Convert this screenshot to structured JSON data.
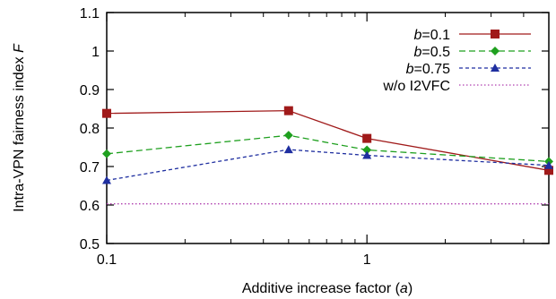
{
  "chart_data": {
    "type": "line",
    "xlabel": {
      "prefix": "Additive increase factor (",
      "var": "a",
      "suffix": ")"
    },
    "ylabel": {
      "prefix": "Intra-VPN fairness index ",
      "var": "F"
    },
    "x_scale": "log",
    "xlim": [
      0.1,
      5
    ],
    "ylim": [
      0.5,
      1.1
    ],
    "x_ticks": [
      {
        "value": 0.1,
        "label": "0.1"
      },
      {
        "value": 1,
        "label": "1"
      }
    ],
    "y_ticks": [
      {
        "value": 0.5,
        "label": "0.5"
      },
      {
        "value": 0.6,
        "label": "0.6"
      },
      {
        "value": 0.7,
        "label": "0.7"
      },
      {
        "value": 0.8,
        "label": "0.8"
      },
      {
        "value": 0.9,
        "label": "0.9"
      },
      {
        "value": 1.0,
        "label": "1"
      },
      {
        "value": 1.1,
        "label": "1.1"
      }
    ],
    "grid": false,
    "legend_position": "top-right",
    "series": [
      {
        "name": "b=0.1",
        "legend_var": "b",
        "legend_rest": "=0.1",
        "color": "#a01a1a",
        "marker": "square",
        "dash": "solid",
        "x": [
          0.1,
          0.5,
          1,
          5
        ],
        "y": [
          0.838,
          0.845,
          0.773,
          0.69
        ]
      },
      {
        "name": "b=0.5",
        "legend_var": "b",
        "legend_rest": "=0.5",
        "color": "#1fa01f",
        "marker": "diamond",
        "dash": "dashed",
        "x": [
          0.1,
          0.5,
          1,
          5
        ],
        "y": [
          0.733,
          0.781,
          0.743,
          0.713
        ]
      },
      {
        "name": "b=0.75",
        "legend_var": "b",
        "legend_rest": "=0.75",
        "color": "#1f2fa0",
        "marker": "triangle",
        "dash": "dashed-fine",
        "x": [
          0.1,
          0.5,
          1,
          5
        ],
        "y": [
          0.664,
          0.744,
          0.729,
          0.703
        ]
      },
      {
        "name": "w/o I2VFC",
        "legend_var": "",
        "legend_rest": "w/o I2VFC",
        "color": "#b040b0",
        "marker": "none",
        "dash": "dotted",
        "x": [
          0.1,
          5
        ],
        "y": [
          0.603,
          0.603
        ]
      }
    ]
  }
}
